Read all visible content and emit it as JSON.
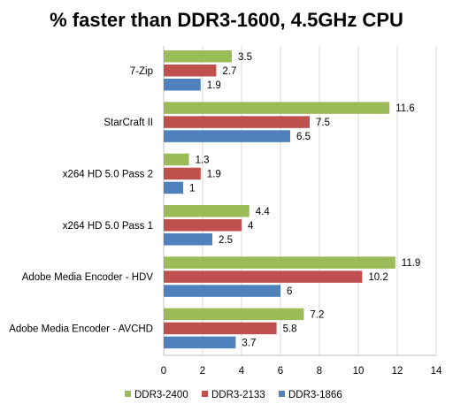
{
  "chart_data": {
    "type": "bar",
    "orientation": "horizontal",
    "title": "% faster than DDR3-1600, 4.5GHz CPU",
    "xlabel": "",
    "ylabel": "",
    "categories": [
      "7-Zip",
      "StarCraft II",
      "x264 HD 5.0 Pass 2",
      "x264 HD 5.0 Pass 1",
      "Adobe Media Encoder - HDV",
      "Adobe Media Encoder - AVCHD"
    ],
    "series": [
      {
        "name": "DDR3-2400",
        "color": "#9bbb59",
        "values": [
          3.5,
          11.6,
          1.3,
          4.4,
          11.9,
          7.2
        ]
      },
      {
        "name": "DDR3-2133",
        "color": "#c0504d",
        "values": [
          2.7,
          7.5,
          1.9,
          4,
          10.2,
          5.8
        ]
      },
      {
        "name": "DDR3-1866",
        "color": "#4f81bd",
        "values": [
          1.9,
          6.5,
          1,
          2.5,
          6,
          3.7
        ]
      }
    ],
    "xlim": [
      0,
      14
    ],
    "xticks": [
      0,
      2,
      4,
      6,
      8,
      10,
      12,
      14
    ],
    "grid": true,
    "legend_position": "bottom"
  }
}
